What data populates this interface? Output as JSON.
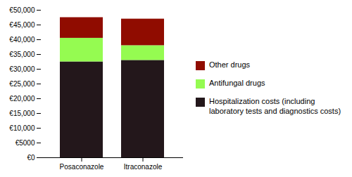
{
  "chart_data": {
    "type": "bar",
    "categories": [
      "Posaconazole",
      "Itraconazole"
    ],
    "series": [
      {
        "name": "Hospitalization costs (including\nlaboratory tests and diagnostics costs)",
        "values": [
          32500,
          33000
        ]
      },
      {
        "name": "Antifungal drugs",
        "values": [
          8000,
          5000
        ]
      },
      {
        "name": "Other drugs",
        "values": [
          7000,
          9000
        ]
      }
    ],
    "stacked": true,
    "ylim": [
      0,
      50000
    ],
    "yticks": [
      {
        "value": 0,
        "label": "€0"
      },
      {
        "value": 5000,
        "label": "€5000"
      },
      {
        "value": 10000,
        "label": "€10,000"
      },
      {
        "value": 15000,
        "label": "€15,000"
      },
      {
        "value": 20000,
        "label": "€20,000"
      },
      {
        "value": 25000,
        "label": "€25,000"
      },
      {
        "value": 30000,
        "label": "€30,000"
      },
      {
        "value": 35000,
        "label": "€35,000"
      },
      {
        "value": 40000,
        "label": "€40,000"
      },
      {
        "value": 45000,
        "label": "€45,000"
      },
      {
        "value": 50000,
        "label": "€50,000"
      }
    ],
    "grid": false,
    "legend": "right"
  }
}
